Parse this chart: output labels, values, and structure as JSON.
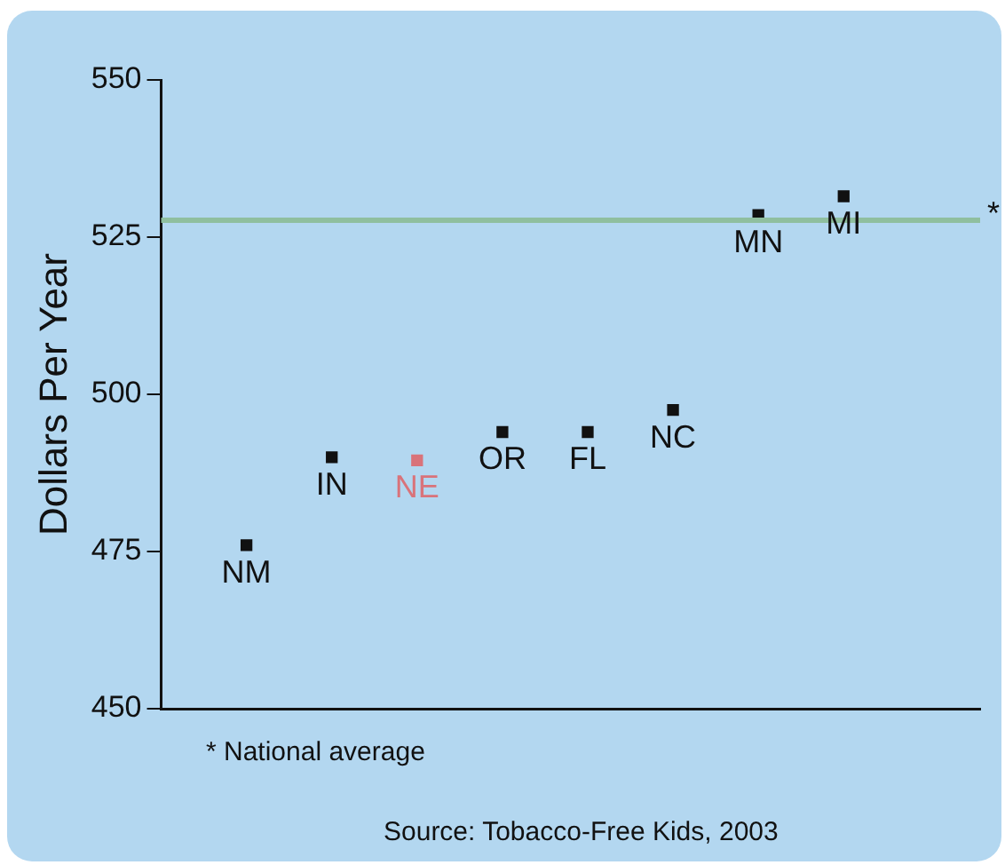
{
  "chart_data": {
    "type": "scatter",
    "ylabel": "Dollars Per Year",
    "categories": [
      "NM",
      "IN",
      "NE",
      "OR",
      "FL",
      "NC",
      "MN",
      "MI"
    ],
    "values": [
      476,
      490,
      489.5,
      494,
      494,
      497.5,
      528.5,
      531.5
    ],
    "colors": [
      "#111111",
      "#111111",
      "#d9737a",
      "#111111",
      "#111111",
      "#111111",
      "#111111",
      "#111111"
    ],
    "marker": "square",
    "ylim": [
      450,
      550
    ],
    "yticks": [
      450,
      475,
      500,
      525,
      550
    ],
    "grid": false,
    "legend": false,
    "ref_lines": [
      {
        "axis": "y",
        "value": 527.7,
        "label": "*",
        "color": "#8fbf9f"
      }
    ],
    "annotations": [
      "* National average",
      "Source: Tobacco-Free Kids, 2003"
    ]
  }
}
